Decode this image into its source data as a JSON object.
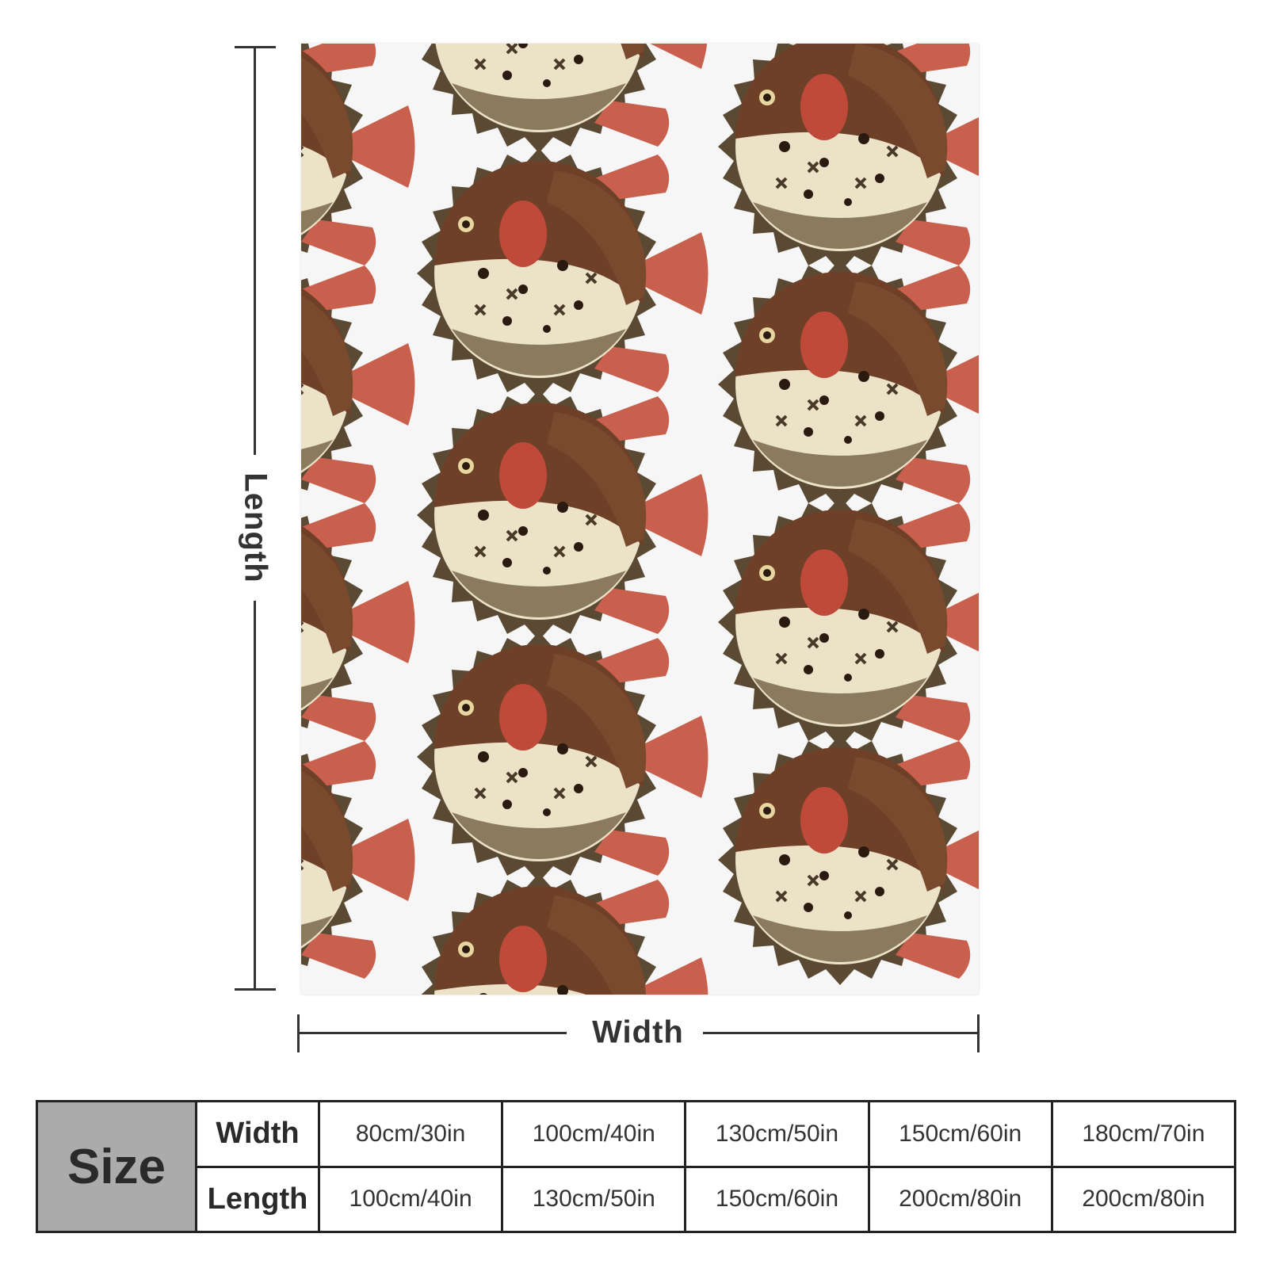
{
  "diagram": {
    "length_label": "Length",
    "width_label": "Width"
  },
  "size_table": {
    "heading": "Size",
    "width_label": "Width",
    "length_label": "Length",
    "widths": [
      "80cm/30in",
      "100cm/40in",
      "130cm/50in",
      "150cm/60in",
      "180cm/70in"
    ],
    "lengths": [
      "100cm/40in",
      "130cm/50in",
      "150cm/60in",
      "200cm/80in",
      "200cm/80in"
    ]
  },
  "colors": {
    "blanket_bg": "#f6f6f7",
    "fish_body": "#ebe2c8",
    "fish_back": "#6e4028",
    "fin": "#c9604d",
    "table_head_bg": "#ababab"
  }
}
